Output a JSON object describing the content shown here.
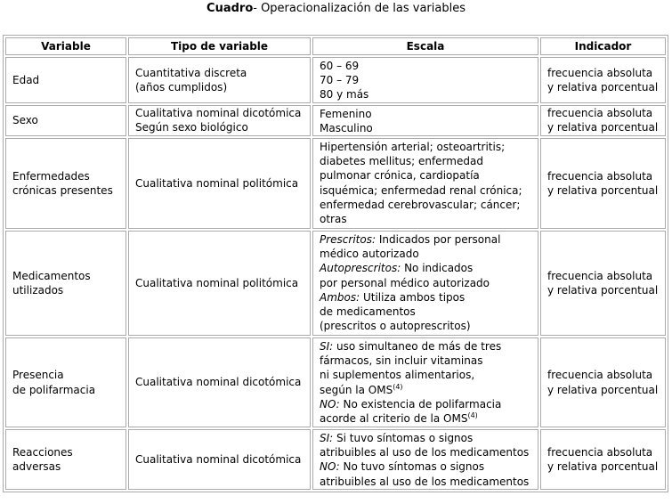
{
  "title": {
    "label": "Cuadro",
    "text": "- Operacionalización de las variables"
  },
  "table": {
    "headers": [
      "Variable",
      "Tipo de variable",
      "Escala",
      "Indicador"
    ],
    "rows": [
      [
        [
          "Edad"
        ],
        [
          "Cuantitativa discreta",
          "(años cumplidos)"
        ],
        [
          "60 – 69",
          "70 – 79",
          "80 y más"
        ],
        [
          "frecuencia absoluta",
          "y relativa porcentual"
        ]
      ],
      [
        [
          "Sexo"
        ],
        [
          "Cualitativa nominal dicotómica",
          "Según sexo biológico"
        ],
        [
          "Femenino",
          "Masculino"
        ],
        [
          "frecuencia absoluta",
          "y relativa porcentual"
        ]
      ],
      [
        [
          "Enfermedades",
          "crónicas presentes"
        ],
        [
          "Cualitativa nominal politómica"
        ],
        [
          "Hipertensión arterial; osteoartritis;",
          "diabetes mellitus; enfermedad",
          "pulmonar crónica, cardiopatía",
          "isquémica; enfermedad renal crónica;",
          "enfermedad cerebrovascular; cáncer;",
          "otras"
        ],
        [
          "frecuencia absoluta",
          "y relativa porcentual"
        ]
      ],
      [
        [
          "Medicamentos",
          "utilizados"
        ],
        [
          "Cualitativa nominal politómica"
        ],
        [
          [
            {
              "text": "Prescritos:",
              "style": "italic"
            },
            " Indicados por personal"
          ],
          "médico autorizado",
          [
            {
              "text": "Autoprescritos:",
              "style": "italic"
            },
            " No indicados"
          ],
          "por personal médico autorizado",
          [
            {
              "text": "Ambos:",
              "style": "italic"
            },
            " Utiliza ambos tipos"
          ],
          "de medicamentos",
          "(prescritos o autoprescritos)"
        ],
        [
          "frecuencia absoluta",
          "y relativa porcentual"
        ]
      ],
      [
        [
          "Presencia",
          "de polifarmacia"
        ],
        [
          "Cualitativa nominal dicotómica"
        ],
        [
          [
            {
              "text": "SI:",
              "style": "italic"
            },
            " uso simultaneo de más de tres"
          ],
          "fármacos, sin incluir vitaminas",
          "ni suplementos alimentarios,",
          [
            "según la OMS",
            {
              "text": "(4)",
              "style": "sup"
            }
          ],
          [
            {
              "text": "NO:",
              "style": "italic"
            },
            " No existencia de polifarmacia"
          ],
          [
            "acorde al criterio de la OMS",
            {
              "text": "(4)",
              "style": "sup"
            }
          ]
        ],
        [
          "frecuencia absoluta",
          "y relativa porcentual"
        ]
      ],
      [
        [
          "Reacciones",
          "adversas"
        ],
        [
          "Cualitativa nominal dicotómica"
        ],
        [
          [
            {
              "text": "SI:",
              "style": "italic"
            },
            " Si tuvo síntomas o signos"
          ],
          "atribuibles al uso de los medicamentos",
          [
            {
              "text": "NO:",
              "style": "italic"
            },
            " No tuvo síntomas o signos"
          ],
          "atribuibles al uso de los medicamentos"
        ],
        [
          "frecuencia absoluta",
          "y relativa porcentual"
        ]
      ]
    ]
  }
}
